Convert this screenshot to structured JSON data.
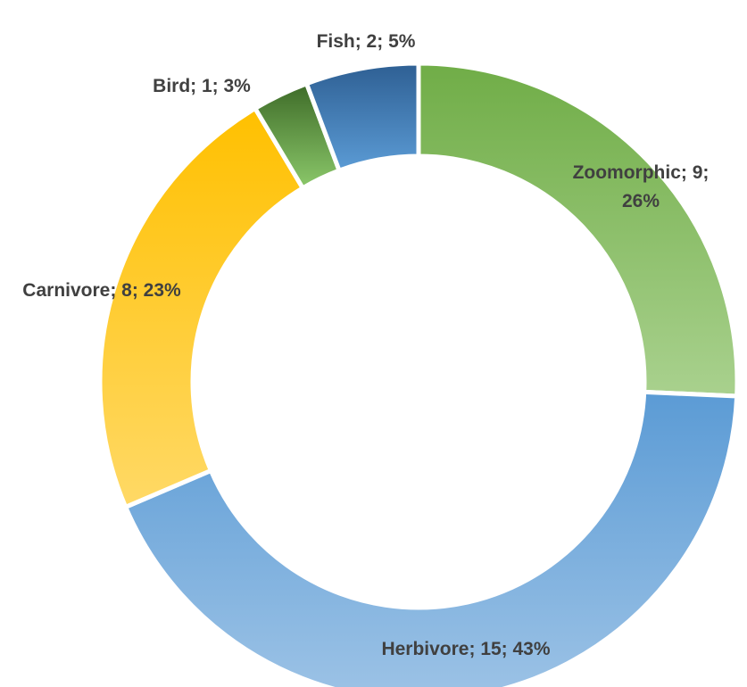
{
  "chart_data": {
    "type": "pie",
    "style": "donut",
    "title": "",
    "categories": [
      "Zoomorphic",
      "Herbivore",
      "Carnivore",
      "Bird",
      "Fish"
    ],
    "values": [
      9,
      15,
      8,
      1,
      2
    ],
    "percent_labels": [
      "26%",
      "43%",
      "23%",
      "3%",
      "5%"
    ],
    "data_labels": [
      [
        "Zoomorphic; 9;",
        "26%"
      ],
      [
        "Herbivore; 15; 43%"
      ],
      [
        "Carnivore; 8; 23%"
      ],
      [
        "Bird; 1; 3%"
      ],
      [
        "Fish; 2; 5%"
      ]
    ],
    "colors": {
      "Zoomorphic": [
        "#70ad47",
        "#a9d18e"
      ],
      "Herbivore": [
        "#5b9bd5",
        "#9dc3e6"
      ],
      "Carnivore": [
        "#ffc000",
        "#ffd966"
      ],
      "Bird": [
        "#3e6b28",
        "#8bc86a"
      ],
      "Fish": [
        "#2e5f93",
        "#5b9bd5"
      ]
    },
    "legend": "none"
  }
}
